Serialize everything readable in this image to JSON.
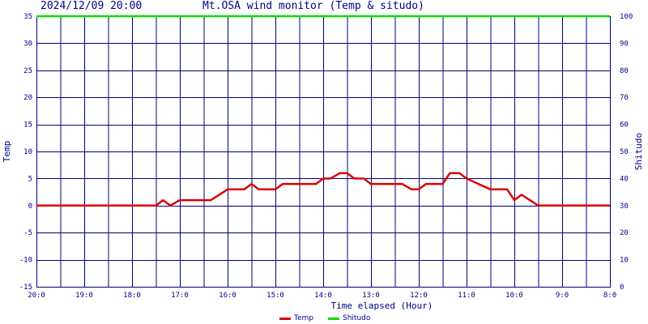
{
  "header": {
    "timestamp": "2024/12/09 20:00",
    "title": "Mt.OSA wind monitor (Temp & situdo)"
  },
  "colors": {
    "grid": "#00007a",
    "frame": "#00007a",
    "text": "#00008b",
    "temp": "#dd0000",
    "situdo": "#00dd00"
  },
  "chart_data": {
    "type": "line",
    "title": "Mt.OSA wind monitor (Temp & situdo)",
    "xlabel": "Time elapsed (Hour)",
    "ylabel_left": "Temp",
    "ylabel_right": "Shitudo",
    "xlim": [
      0,
      24
    ],
    "ylim_left": [
      -15,
      35
    ],
    "ylim_right": [
      0,
      100
    ],
    "x_ticks": [
      0,
      2,
      4,
      6,
      8,
      10,
      12,
      14,
      16,
      18,
      20,
      22,
      24
    ],
    "x_tick_labels": [
      "20:0",
      "19:0",
      "18:0",
      "17:0",
      "16:0",
      "15:0",
      "14:0",
      "13:0",
      "12:0",
      "11:0",
      "10:0",
      "9:0",
      "8:0"
    ],
    "y_ticks_left": [
      35,
      30,
      25,
      20,
      15,
      10,
      5,
      0,
      -5,
      -10,
      -15
    ],
    "y_ticks_right": [
      100,
      90,
      80,
      70,
      60,
      50,
      40,
      30,
      20,
      10,
      0
    ],
    "grid": true,
    "legend_position": "bottom-center",
    "series": [
      {
        "name": "Temp",
        "axis": "left",
        "x": [
          0,
          5,
          5.3,
          5.6,
          6.0,
          7.3,
          8.0,
          8.7,
          9.0,
          9.3,
          10.0,
          10.3,
          11.0,
          11.7,
          12.0,
          12.3,
          12.7,
          13.0,
          13.3,
          13.7,
          14.0,
          15.3,
          15.7,
          16.0,
          16.3,
          17.0,
          17.3,
          17.7,
          18.0,
          19.0,
          19.3,
          19.7,
          20.0,
          20.3,
          21.0,
          24.0
        ],
        "y": [
          0,
          0,
          1,
          0,
          1,
          1,
          3,
          3,
          4,
          3,
          3,
          4,
          4,
          4,
          5,
          5,
          6,
          6,
          5,
          5,
          4,
          4,
          3,
          3,
          4,
          4,
          6,
          6,
          5,
          3,
          3,
          3,
          1,
          2,
          0,
          0
        ]
      },
      {
        "name": "Shitudo",
        "axis": "right",
        "x": [
          0,
          24
        ],
        "y": [
          100,
          100
        ]
      }
    ]
  },
  "legend": {
    "temp_label": "Temp",
    "situdo_label": "Shitudo"
  }
}
